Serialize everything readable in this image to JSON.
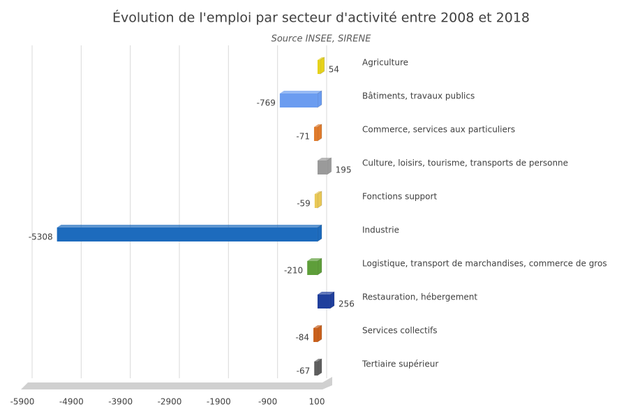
{
  "chart_data": {
    "type": "bar",
    "orientation": "horizontal",
    "title": "Évolution de l'emploi par secteur d'activité entre 2008 et 2018",
    "subtitle": "Source INSEE, SIRENE",
    "categories": [
      "Agriculture",
      "Bâtiments, travaux publics",
      "Commerce, services aux particuliers",
      "Culture, loisirs, tourisme, transports de personne",
      "Fonctions support",
      "Industrie",
      "Logistique, transport de marchandises, commerce de gros",
      "Restauration, hébergement",
      "Services collectifs",
      "Tertiaire supérieur"
    ],
    "values": [
      54,
      -769,
      -71,
      195,
      -59,
      -5308,
      -210,
      256,
      -84,
      -67
    ],
    "colors": [
      "#e6d21a",
      "#6b9cf0",
      "#e07b2c",
      "#9a9a9a",
      "#e9c856",
      "#1d6bbd",
      "#5e9e3a",
      "#1f3f9c",
      "#c9601c",
      "#5e5e5e"
    ],
    "xlim": [
      -5900,
      100
    ],
    "xticks": [
      -5900,
      -4900,
      -3900,
      -2900,
      -1900,
      -900,
      100
    ],
    "grid": true
  }
}
